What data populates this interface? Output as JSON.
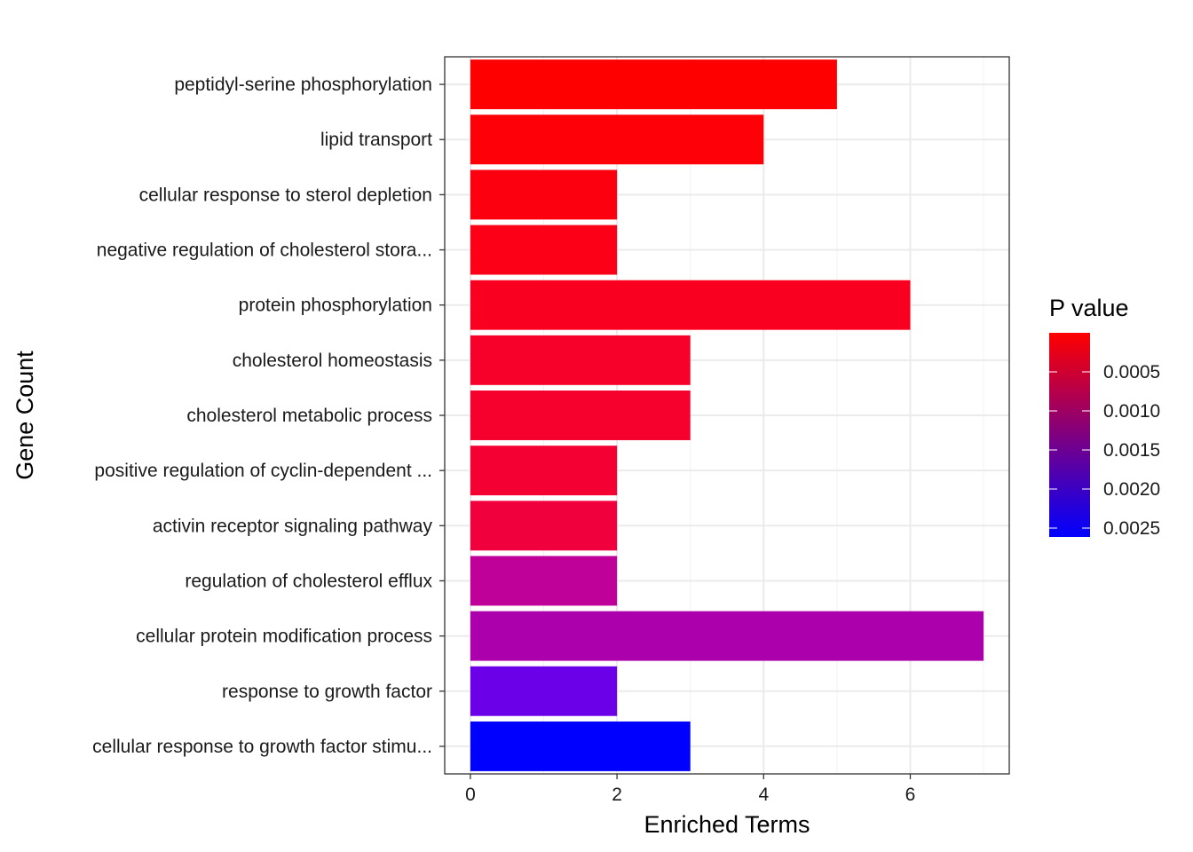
{
  "chart_data": {
    "type": "bar",
    "orientation": "horizontal",
    "xlabel": "Enriched Terms",
    "ylabel": "Gene Count",
    "xlim": [
      -0.35,
      7.35
    ],
    "x_ticks": [
      0,
      2,
      4,
      6
    ],
    "x_tick_labels": [
      "0",
      "2",
      "4",
      "6"
    ],
    "grid": true,
    "categories": [
      "peptidyl-serine phosphorylation",
      "lipid transport",
      "cellular response to sterol depletion",
      "negative regulation of cholesterol stora...",
      "protein phosphorylation",
      "cholesterol homeostasis",
      "cholesterol metabolic process",
      "positive regulation of cyclin-dependent ...",
      "activin receptor signaling pathway",
      "regulation of cholesterol efflux",
      "cellular protein modification process",
      "response to growth factor",
      "cellular response to growth factor stimu..."
    ],
    "values": [
      5,
      4,
      2,
      2,
      6,
      3,
      3,
      2,
      2,
      2,
      7,
      2,
      3
    ],
    "colors": [
      "#FF0000",
      "#FE0008",
      "#FC000F",
      "#FB0016",
      "#F90020",
      "#F7002A",
      "#F6002E",
      "#F50033",
      "#F1003E",
      "#BF0099",
      "#AD00AD",
      "#6B00E8",
      "#0000FF"
    ],
    "legend": {
      "title": "P value",
      "position": "right",
      "labels": [
        "0.0005",
        "0.0010",
        "0.0015",
        "0.0020",
        "0.0025"
      ],
      "color_low_p": "#FF0000",
      "color_high_p": "#0000FF"
    }
  }
}
